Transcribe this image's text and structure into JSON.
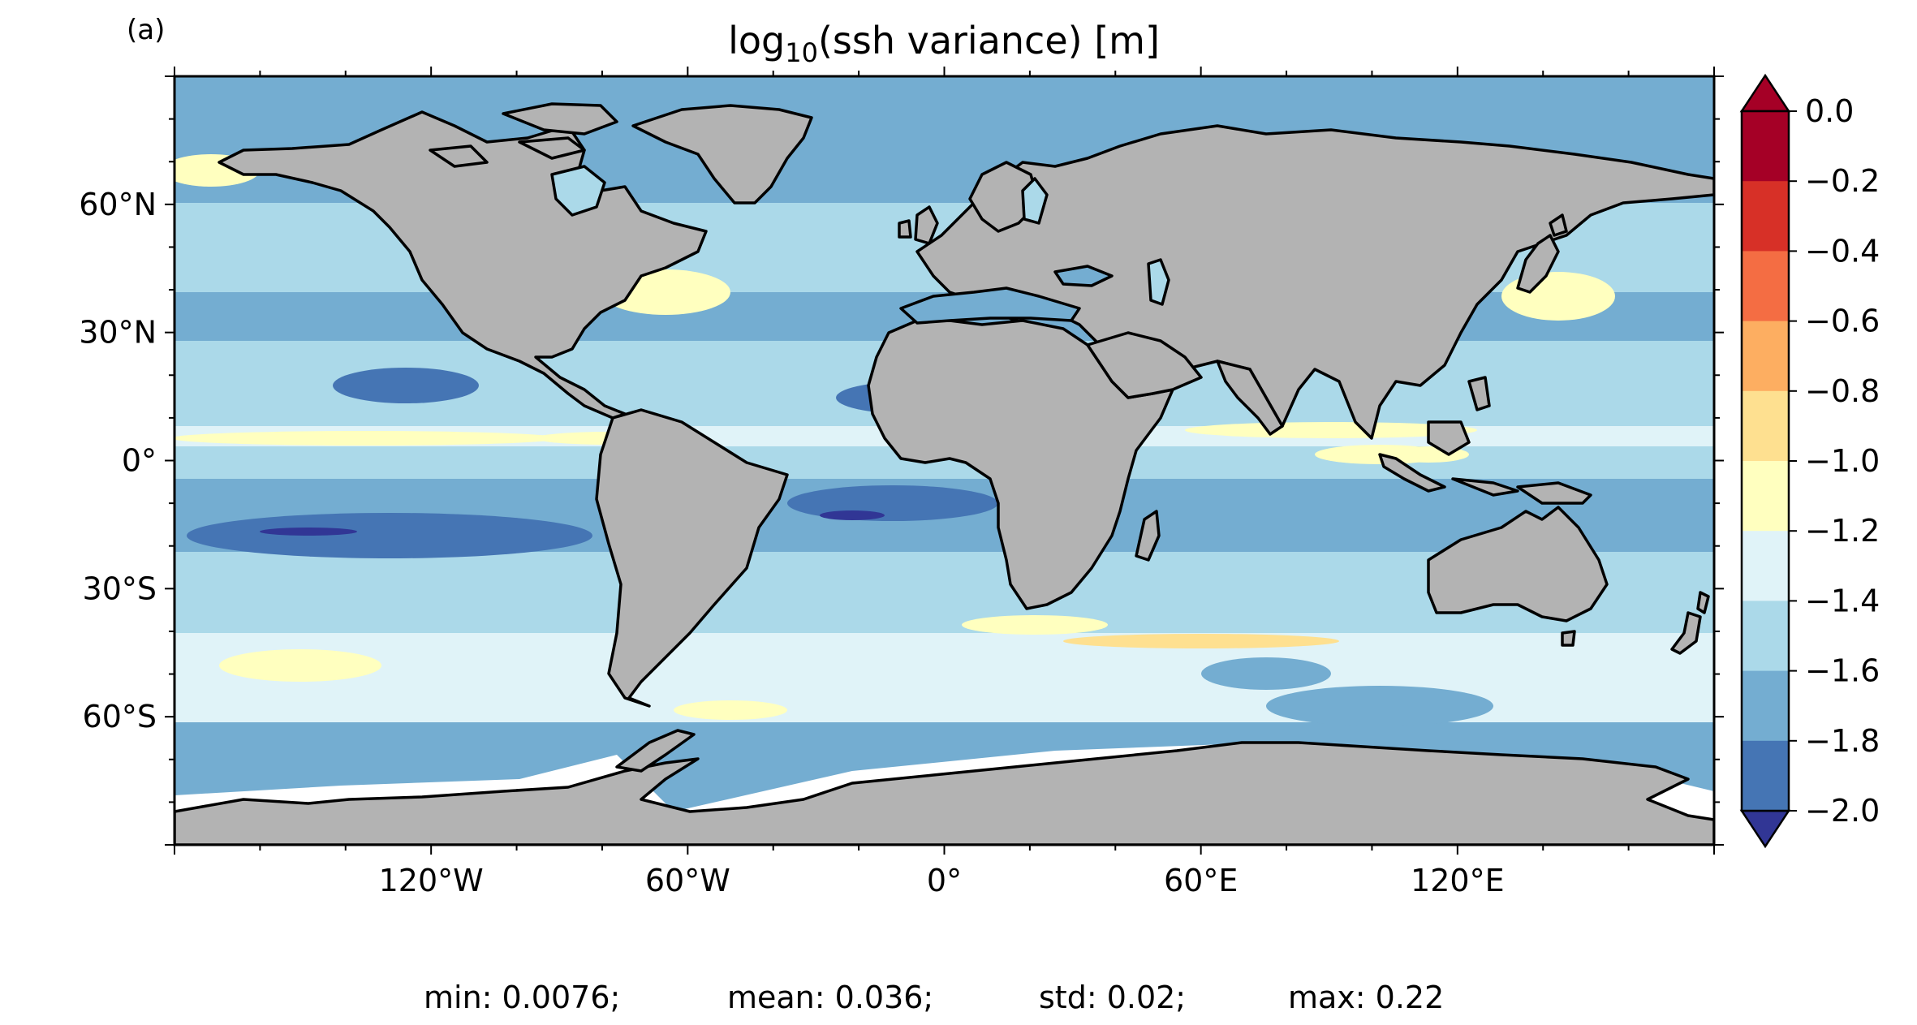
{
  "panel_label": "(a)",
  "title": {
    "prefix": "log",
    "subscript": "10",
    "rest": "(ssh variance) [m]"
  },
  "lat_ticks": [
    "60°N",
    "30°N",
    "0°",
    "30°S",
    "60°S"
  ],
  "lon_ticks": [
    "120°W",
    "60°W",
    "0°",
    "60°E",
    "120°E"
  ],
  "colorbar": {
    "ticks": [
      "0.0",
      "−0.2",
      "−0.4",
      "−0.6",
      "−0.8",
      "−1.0",
      "−1.2",
      "−1.4",
      "−1.6",
      "−1.8",
      "−2.0"
    ],
    "colors_top_to_bottom": [
      "#a50026",
      "#d73027",
      "#f46d43",
      "#fdae61",
      "#fee090",
      "#ffffbf",
      "#e0f3f8",
      "#abd9e9",
      "#74add1",
      "#4575b4"
    ],
    "extend_max_color": "#a50026",
    "extend_min_color": "#313695"
  },
  "stats": {
    "min": "min: 0.0076;",
    "mean": "mean: 0.036;",
    "std": "std: 0.02;",
    "max": "max: 0.22"
  },
  "colors": {
    "land": "#b3b3b3",
    "ocean_base": "#74add1",
    "antarctic_ice": "#ffffff"
  }
}
